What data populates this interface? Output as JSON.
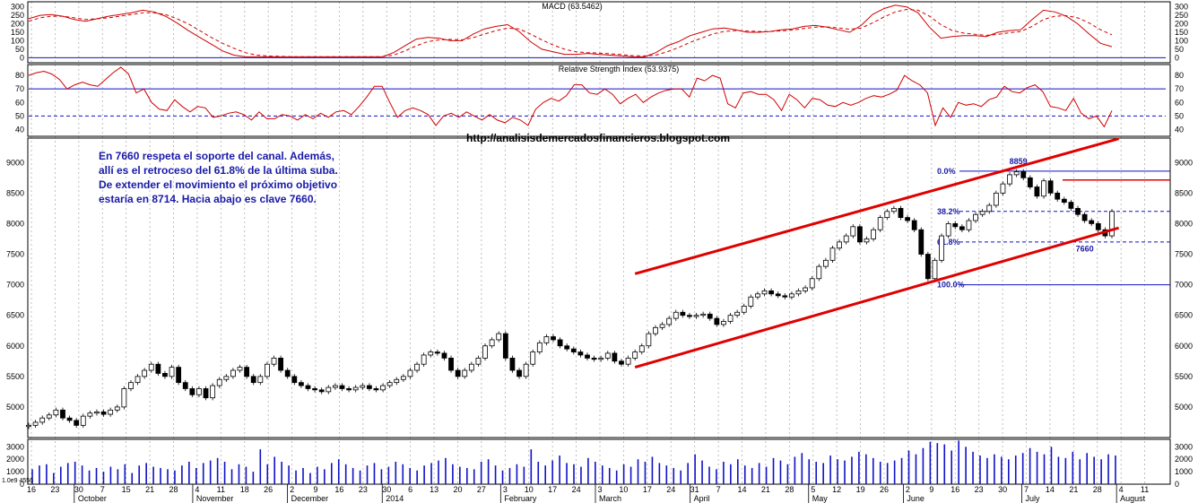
{
  "colors": {
    "bg": "#ffffff",
    "grid": "#b0b0b0",
    "macd_line": "#d00000",
    "rsi_line": "#d00000",
    "channel": "#e00000",
    "ref_blue": "#1010c8",
    "volume": "#1010c8",
    "note_text": "#1a1aa8"
  },
  "url": "http://analisisdemercadosfinancieros.blogspot.com",
  "note_lines": [
    "En 7660 respeta el soporte del canal. Además,",
    "allí es el retroceso del 61.8% de la última suba.",
    "De extender el movimiento el próximo objetivo",
    "estaría en 8714. Hacia abajo es clave 7660."
  ],
  "chart_data": [
    {
      "type": "line",
      "title": "MACD (63.5462)",
      "y_ticks": [
        300,
        250,
        200,
        150,
        100,
        50,
        0
      ],
      "ylim": [
        -30,
        330
      ],
      "series": [
        {
          "values": [
            230,
            250,
            255,
            245,
            225,
            215,
            230,
            245,
            255,
            265,
            280,
            270,
            245,
            205,
            160,
            120,
            80,
            40,
            15,
            5,
            5,
            5,
            5,
            5,
            5,
            5,
            5,
            5,
            5,
            5,
            5,
            5,
            30,
            70,
            110,
            120,
            115,
            100,
            100,
            140,
            170,
            185,
            195,
            155,
            95,
            50,
            35,
            20,
            20,
            25,
            20,
            15,
            10,
            5,
            5,
            30,
            70,
            95,
            130,
            150,
            170,
            175,
            165,
            150,
            150,
            155,
            165,
            170,
            185,
            190,
            180,
            165,
            150,
            190,
            255,
            290,
            310,
            300,
            265,
            180,
            115,
            125,
            130,
            130,
            125,
            150,
            160,
            165,
            225,
            280,
            270,
            245,
            200,
            140,
            85,
            65
          ]
        },
        {
          "values": [
            215,
            235,
            245,
            245,
            235,
            225,
            230,
            235,
            245,
            255,
            265,
            265,
            255,
            230,
            200,
            160,
            120,
            85,
            55,
            30,
            15,
            10,
            8,
            6,
            6,
            6,
            6,
            6,
            6,
            6,
            6,
            6,
            15,
            40,
            70,
            95,
            105,
            108,
            105,
            118,
            140,
            160,
            175,
            170,
            140,
            105,
            75,
            50,
            35,
            30,
            27,
            23,
            18,
            12,
            10,
            15,
            35,
            60,
            90,
            115,
            140,
            155,
            160,
            158,
            155,
            155,
            158,
            163,
            172,
            180,
            182,
            176,
            168,
            175,
            205,
            240,
            270,
            285,
            280,
            245,
            195,
            160,
            145,
            138,
            132,
            138,
            147,
            155,
            185,
            225,
            245,
            248,
            235,
            205,
            165,
            135
          ]
        }
      ]
    },
    {
      "type": "line",
      "title": "Relative Strength Index (53.9375)",
      "y_ticks": [
        80,
        70,
        60,
        50,
        40
      ],
      "ylim": [
        35,
        88
      ],
      "series": [
        {
          "values": [
            80,
            82,
            83,
            81,
            77,
            70,
            73,
            75,
            73,
            72,
            77,
            82,
            86,
            81,
            67,
            70,
            60,
            55,
            54,
            62,
            57,
            53,
            57,
            56,
            49,
            50,
            52,
            53,
            51,
            47,
            53,
            48,
            48,
            51,
            50,
            47,
            51,
            48,
            52,
            49,
            53,
            54,
            51,
            57,
            64,
            72,
            72,
            60,
            49,
            54,
            56,
            54,
            51,
            43,
            50,
            52,
            49,
            53,
            50,
            47,
            51,
            47,
            45,
            49,
            47,
            43,
            55,
            60,
            63,
            61,
            65,
            73,
            73,
            67,
            66,
            70,
            66,
            59,
            63,
            66,
            60,
            64,
            67,
            69,
            70,
            70,
            64,
            78,
            76,
            80,
            78,
            59,
            56,
            67,
            68,
            66,
            66,
            62,
            54,
            66,
            62,
            56,
            63,
            62,
            58,
            57,
            60,
            58,
            60,
            63,
            65,
            64,
            66,
            69,
            80,
            76,
            73,
            67,
            43,
            56,
            49,
            60,
            58,
            59,
            57,
            62,
            64,
            72,
            68,
            67,
            71,
            73,
            68,
            57,
            56,
            54,
            63,
            52,
            48,
            50,
            42,
            54
          ]
        }
      ]
    },
    {
      "type": "line",
      "title": "",
      "y_ticks": [
        9000,
        8500,
        8000,
        7500,
        7000,
        6500,
        6000,
        5500,
        5000
      ],
      "ylim": [
        4500,
        9400
      ],
      "series": [
        {
          "values": [
            4700,
            4750,
            4820,
            4870,
            4950,
            4820,
            4780,
            4700,
            4850,
            4900,
            4920,
            4880,
            4950,
            5000,
            5300,
            5400,
            5500,
            5600,
            5700,
            5550,
            5500,
            5650,
            5400,
            5300,
            5200,
            5300,
            5150,
            5350,
            5450,
            5500,
            5600,
            5650,
            5500,
            5400,
            5500,
            5700,
            5800,
            5600,
            5500,
            5400,
            5350,
            5300,
            5280,
            5250,
            5320,
            5350,
            5300,
            5280,
            5320,
            5350,
            5300,
            5280,
            5350,
            5400,
            5450,
            5500,
            5600,
            5700,
            5850,
            5900,
            5880,
            5800,
            5600,
            5500,
            5600,
            5700,
            5800,
            6000,
            6100,
            6200,
            5800,
            5600,
            5500,
            5700,
            5900,
            6050,
            6150,
            6100,
            6000,
            5950,
            5900,
            5850,
            5800,
            5780,
            5800,
            5880,
            5750,
            5700,
            5800,
            5900,
            6000,
            6200,
            6300,
            6350,
            6450,
            6550,
            6500,
            6480,
            6500,
            6520,
            6450,
            6350,
            6400,
            6500,
            6550,
            6650,
            6800,
            6850,
            6900,
            6850,
            6820,
            6800,
            6850,
            6900,
            6950,
            7100,
            7300,
            7400,
            7600,
            7700,
            7800,
            7950,
            7700,
            7750,
            7900,
            8100,
            8200,
            8250,
            8100,
            8050,
            7900,
            7500,
            7100,
            7400,
            7800,
            8000,
            7950,
            7900,
            8050,
            8150,
            8200,
            8300,
            8500,
            8650,
            8800,
            8850,
            8750,
            8600,
            8450,
            8700,
            8500,
            8400,
            8350,
            8250,
            8150,
            8050,
            8000,
            7900,
            7800,
            8200
          ]
        }
      ],
      "fibonacci": [
        {
          "label": "0.0%",
          "value": 8859
        },
        {
          "label": "38.2%",
          "value": 8200
        },
        {
          "label": "61.8%",
          "value": 7700
        },
        {
          "label": "100.0%",
          "value": 7000
        }
      ],
      "annotations": [
        "8859",
        "7660"
      ],
      "resistance": 8714
    },
    {
      "type": "bar",
      "title": "",
      "y_ticks": [
        3000,
        2000,
        1000,
        0
      ],
      "ylim": [
        0,
        3600
      ],
      "series": [
        {
          "values": [
            1200,
            1500,
            1600,
            900,
            1400,
            1700,
            1800,
            1500,
            1100,
            1300,
            1000,
            1400,
            1200,
            1600,
            900,
            1500,
            1700,
            1400,
            1300,
            1200,
            1100,
            1500,
            1800,
            1300,
            1700,
            1900,
            2100,
            1800,
            1200,
            1600,
            1400,
            1000,
            2800,
            1600,
            2200,
            1800,
            1500,
            1100,
            1300,
            900,
            1400,
            1200,
            1700,
            2000,
            1600,
            1300,
            1100,
            1500,
            1700,
            1200,
            1400,
            1800,
            1600,
            1300,
            1100,
            1500,
            1700,
            1900,
            2100,
            1600,
            1400,
            1300,
            1200,
            1800,
            2000,
            1500,
            1100,
            1300,
            1600,
            1400,
            2800,
            1800,
            1500,
            1900,
            2300,
            1700,
            1600,
            1400,
            2100,
            1800,
            1500,
            1300,
            1100,
            1600,
            1400,
            2000,
            1800,
            2200,
            1700,
            1500,
            1300,
            1100,
            1700,
            2400,
            1900,
            1400,
            1200,
            1800,
            1600,
            2000,
            1500,
            1300,
            1700,
            1400,
            2100,
            1900,
            1600,
            2200,
            2500,
            2000,
            1800,
            1700,
            2300,
            2000,
            1900,
            2200,
            2600,
            2400,
            2100,
            1800,
            1700,
            1900,
            2100,
            2700,
            2400,
            2900,
            3400,
            3300,
            3200,
            2700,
            3500,
            3000,
            2600,
            2300,
            2100,
            2400,
            2200,
            2000,
            2300,
            2500,
            2900,
            2600,
            2400,
            3000,
            2200,
            2100,
            2600,
            2000,
            2500,
            2200,
            2000,
            2400,
            2300
          ]
        }
      ]
    }
  ],
  "x_axis": {
    "day_labels": [
      "16",
      "23",
      "30",
      "7",
      "15",
      "21",
      "28",
      "4",
      "11",
      "18",
      "26",
      "2",
      "9",
      "16",
      "23",
      "30",
      "6",
      "13",
      "20",
      "27",
      "3",
      "10",
      "17",
      "24",
      "3",
      "10",
      "17",
      "24",
      "31",
      "7",
      "14",
      "21",
      "28",
      "5",
      "12",
      "19",
      "26",
      "2",
      "9",
      "16",
      "23",
      "30",
      "7",
      "14",
      "21",
      "28",
      "4",
      "11"
    ],
    "month_labels": [
      "October",
      "November",
      "December",
      "2014",
      "February",
      "March",
      "April",
      "May",
      "June",
      "July",
      "August"
    ],
    "corner_label": "1.0e9 4556"
  }
}
